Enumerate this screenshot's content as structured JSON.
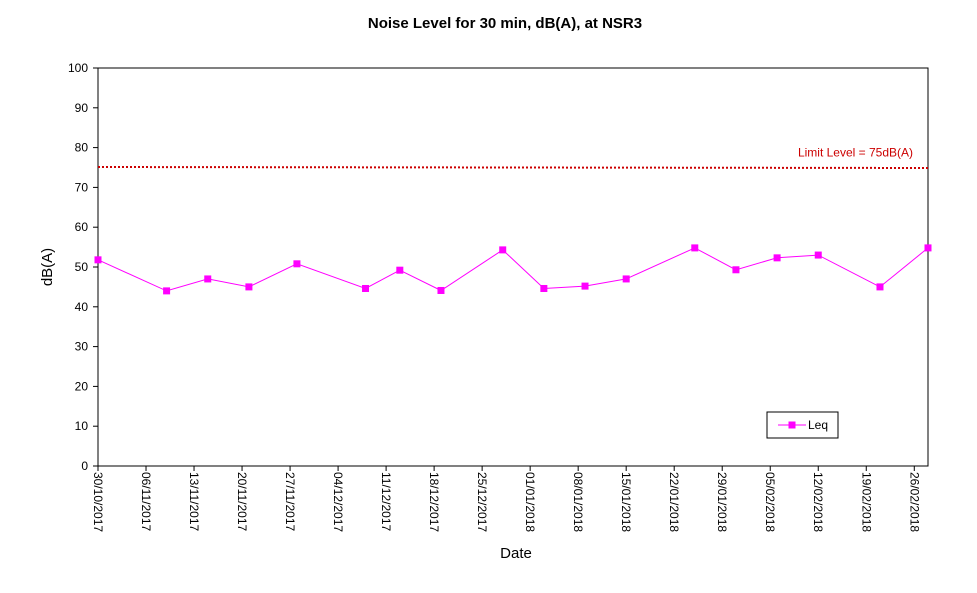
{
  "chart_data": {
    "type": "line",
    "title": "Noise Level for 30 min, dB(A), at NSR3",
    "xlabel": "Date",
    "ylabel": "dB(A)",
    "ylim": [
      0,
      100
    ],
    "yticks": [
      0,
      10,
      20,
      30,
      40,
      50,
      60,
      70,
      80,
      90,
      100
    ],
    "xlim": [
      "30/10/2017",
      "28/02/2018"
    ],
    "xtick_labels": [
      "30/10/2017",
      "06/11/2017",
      "13/11/2017",
      "20/11/2017",
      "27/11/2017",
      "04/12/2017",
      "11/12/2017",
      "18/12/2017",
      "25/12/2017",
      "01/01/2018",
      "08/01/2018",
      "15/01/2018",
      "22/01/2018",
      "29/01/2018",
      "05/02/2018",
      "12/02/2018",
      "19/02/2018",
      "26/02/2018"
    ],
    "grid": false,
    "legend_position": "bottom-right",
    "series": [
      {
        "name": "Leq",
        "color": "#ff00ff",
        "marker": "square",
        "x": [
          "30/10/2017",
          "09/11/2017",
          "15/11/2017",
          "21/11/2017",
          "28/11/2017",
          "08/12/2017",
          "13/12/2017",
          "19/12/2017",
          "28/12/2017",
          "03/01/2018",
          "09/01/2018",
          "15/01/2018",
          "25/01/2018",
          "31/01/2018",
          "06/02/2018",
          "12/02/2018",
          "21/02/2018",
          "28/02/2018"
        ],
        "values": [
          51.8,
          44.0,
          47.0,
          45.0,
          50.8,
          44.6,
          49.2,
          44.1,
          54.3,
          44.6,
          45.2,
          47.0,
          54.8,
          49.3,
          52.3,
          53.0,
          45.0,
          54.8
        ]
      }
    ],
    "reference_line": {
      "value": 75,
      "label": "Limit Level = 75dB(A)",
      "color": "#cc0000",
      "style": "dotted"
    }
  }
}
